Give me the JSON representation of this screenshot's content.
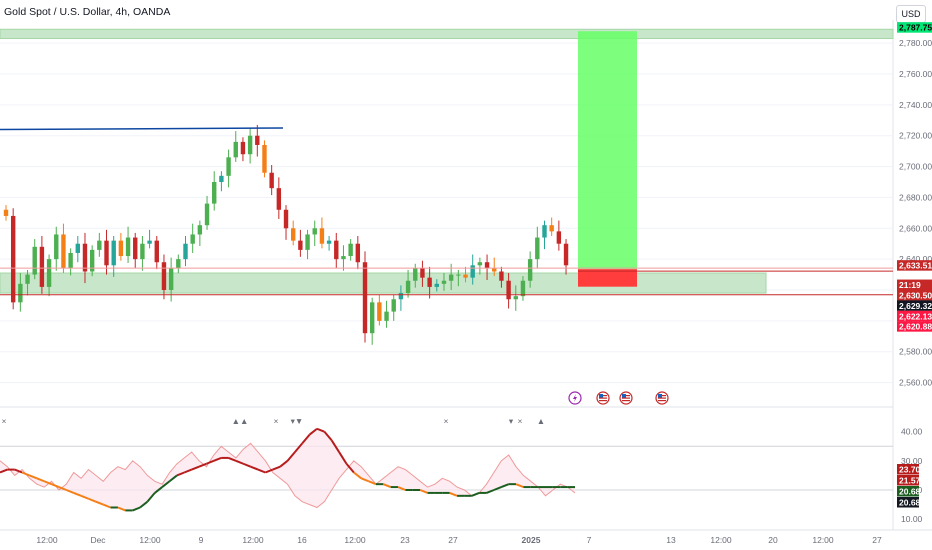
{
  "header": {
    "title": "Gold Spot / U.S. Dollar, 4h, OANDA",
    "currency_button": "USD"
  },
  "colors": {
    "up": "#26a69a",
    "up_alt": "#4caf50",
    "down": "#c62828",
    "orange": "#f57f17",
    "zone": "#c8e6c9",
    "target": "#66ff66",
    "stop": "#ff3d3d",
    "trendline": "#0d47a1"
  },
  "chart_data": [
    {
      "type": "candlestick",
      "title": "Gold Spot / U.S. Dollar, 4h, OANDA",
      "ylim": [
        2550,
        2795
      ],
      "y_ticks": [
        "2,560.000",
        "2,580.000",
        "2,600.000",
        "2,620.000",
        "2,640.000",
        "2,660.000",
        "2,680.000",
        "2,700.000",
        "2,720.000",
        "2,740.000",
        "2,760.000",
        "2,780.000"
      ],
      "x_ticks": [
        "12:00",
        "Dec",
        "12:00",
        "9",
        "12:00",
        "16",
        "12:00",
        "23",
        "27",
        "2025",
        "7",
        "13",
        "12:00",
        "20",
        "12:00",
        "27"
      ],
      "closes": [
        2668,
        2612,
        2624,
        2630,
        2648,
        2622,
        2640,
        2656,
        2634,
        2644,
        2650,
        2632,
        2646,
        2652,
        2636,
        2652,
        2642,
        2654,
        2640,
        2650,
        2652,
        2638,
        2620,
        2634,
        2640,
        2650,
        2656,
        2662,
        2676,
        2690,
        2694,
        2706,
        2716,
        2708,
        2720,
        2714,
        2696,
        2686,
        2672,
        2660,
        2652,
        2646,
        2656,
        2660,
        2650,
        2652,
        2640,
        2642,
        2650,
        2638,
        2592,
        2612,
        2600,
        2606,
        2614,
        2618,
        2626,
        2634,
        2628,
        2622,
        2624,
        2626,
        2630,
        2630,
        2628,
        2636,
        2638,
        2634,
        2632,
        2626,
        2614,
        2616,
        2626,
        2640,
        2654,
        2662,
        2658,
        2650,
        2636
      ],
      "zones": {
        "upper_band": [
          2783,
          2789
        ],
        "lower_zone": [
          2618,
          2631
        ],
        "lower_zone_end": "20",
        "trendline_level": 2724
      },
      "position": {
        "target": 2787.751,
        "entry": 2633.51,
        "stop": 2622.139
      },
      "price_tags": [
        {
          "label": "2,787.751",
          "value": 2787.751,
          "color": "#00e676",
          "text_color": "#000000"
        },
        {
          "label": "2,633.510",
          "value": 2633.51,
          "color": "#c62828",
          "text_color": "#ffffff"
        },
        {
          "label": "21:19",
          "value": 2629.3,
          "color": "#c62828",
          "text_color": "#ffffff",
          "stack": 1
        },
        {
          "label": "2,630.500",
          "value": 2630.5,
          "color": "#c62828",
          "text_color": "#ffffff",
          "stack": 2
        },
        {
          "label": "2,629.320",
          "value": 2629.32,
          "color": "#131722",
          "text_color": "#ffffff",
          "stack": 3
        },
        {
          "label": "2,622.139",
          "value": 2622.139,
          "color": "#ff1744",
          "text_color": "#ffffff",
          "stack": 4
        },
        {
          "label": "2,620.883",
          "value": 2620.883,
          "color": "#ff1744",
          "text_color": "#ffffff",
          "stack": 5
        }
      ],
      "events": [
        "lightning-icon",
        "us-flag-icon",
        "us-flag-icon",
        "us-flag-icon"
      ]
    },
    {
      "type": "line",
      "name": "oscillator",
      "ylim": [
        8,
        44
      ],
      "y_ticks": [
        "10.00",
        "20.00",
        "30.00",
        "40.00"
      ],
      "levels": [
        35,
        20
      ],
      "series": [
        {
          "role": "fast",
          "values": [
            30,
            28,
            25,
            27,
            24,
            22,
            21,
            23,
            20,
            22,
            26,
            24,
            27,
            25,
            23,
            26,
            28,
            27,
            30,
            28,
            25,
            23,
            22,
            26,
            29,
            31,
            33,
            30,
            28,
            32,
            35,
            33,
            31,
            34,
            36,
            33,
            30,
            26,
            24,
            22,
            18,
            16,
            15,
            14,
            16,
            20,
            24,
            27,
            30,
            28,
            25,
            22,
            24,
            26,
            28,
            27,
            25,
            23,
            21,
            22,
            24,
            23,
            21,
            20,
            18,
            19,
            22,
            26,
            30,
            32,
            28,
            25,
            23,
            21,
            18,
            20,
            22,
            21,
            19
          ]
        },
        {
          "role": "slow",
          "values": [
            26,
            27,
            27,
            26,
            25,
            24,
            23,
            22,
            21,
            20,
            19,
            18,
            17,
            16,
            15,
            14,
            14,
            13,
            13,
            14,
            16,
            19,
            21,
            23,
            25,
            26,
            27,
            28,
            29,
            30,
            31,
            31,
            30,
            29,
            28,
            27,
            26,
            27,
            28,
            30,
            33,
            36,
            39,
            41,
            40,
            37,
            33,
            29,
            26,
            24,
            23,
            22,
            22,
            21,
            21,
            20,
            20,
            20,
            19,
            19,
            19,
            19,
            18,
            18,
            18,
            19,
            19,
            20,
            21,
            22,
            22,
            21,
            21,
            21,
            21,
            21,
            21,
            21,
            21
          ]
        }
      ],
      "markers": [
        {
          "symbol": "×",
          "color": "#f57f17"
        },
        {
          "symbol": "▲▲",
          "color": "#1b5e20"
        },
        {
          "symbol": "×",
          "color": "#f57f17"
        },
        {
          "symbol": "▾▼",
          "color": "#b71c1c"
        },
        {
          "symbol": "×",
          "color": "#f57f17"
        },
        {
          "symbol": "▾",
          "color": "#b71c1c"
        },
        {
          "symbol": "×",
          "color": "#f57f17"
        },
        {
          "symbol": "▲",
          "color": "#1b5e20"
        }
      ],
      "value_tags": [
        {
          "label": "23.70",
          "color": "#b71c1c"
        },
        {
          "label": "21.57",
          "color": "#b71c1c"
        },
        {
          "label": "20.68",
          "color": "#1b5e20"
        },
        {
          "label": "20.68",
          "color": "#131722"
        }
      ]
    }
  ]
}
